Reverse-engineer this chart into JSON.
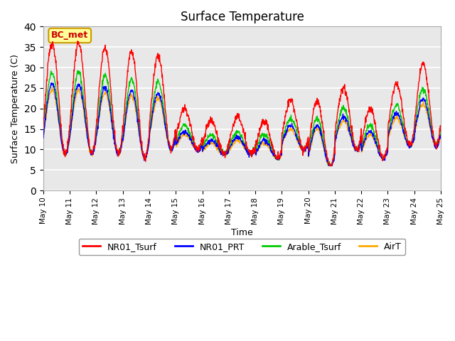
{
  "title": "Surface Temperature",
  "xlabel": "Time",
  "ylabel": "Surface Temperature (C)",
  "ylim": [
    0,
    40
  ],
  "yticks": [
    0,
    5,
    10,
    15,
    20,
    25,
    30,
    35,
    40
  ],
  "annotation_text": "BC_met",
  "colors": {
    "NR01_Tsurf": "#ff0000",
    "NR01_PRT": "#0000ff",
    "Arable_Tsurf": "#00cc00",
    "AirT": "#ffaa00"
  },
  "legend_labels": [
    "NR01_Tsurf",
    "NR01_PRT",
    "Arable_Tsurf",
    "AirT"
  ],
  "bg_color": "#e8e8e8",
  "box_facecolor": "#ffff99",
  "box_edgecolor": "#cc9900",
  "box_textcolor": "#cc0000",
  "x_start": 10,
  "x_end": 25,
  "xtick_days": [
    10,
    11,
    12,
    13,
    14,
    15,
    16,
    17,
    18,
    19,
    20,
    21,
    22,
    23,
    24,
    25
  ]
}
